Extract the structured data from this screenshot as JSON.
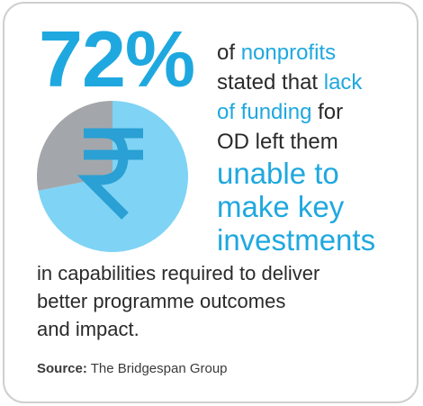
{
  "stat": {
    "percent_text": "72%"
  },
  "statement": {
    "lines": [
      {
        "parts": [
          {
            "text": "of ",
            "hl": false
          },
          {
            "text": "nonprofits",
            "hl": true
          }
        ],
        "size": "normal"
      },
      {
        "parts": [
          {
            "text": "stated that ",
            "hl": false
          },
          {
            "text": "lack",
            "hl": true
          }
        ],
        "size": "normal"
      },
      {
        "parts": [
          {
            "text": "of funding",
            "hl": true
          },
          {
            "text": " for",
            "hl": false
          }
        ],
        "size": "normal"
      },
      {
        "parts": [
          {
            "text": "OD left them",
            "hl": false
          }
        ],
        "size": "normal"
      },
      {
        "parts": [
          {
            "text": "unable to",
            "hl": true
          }
        ],
        "size": "xl"
      },
      {
        "parts": [
          {
            "text": "make key",
            "hl": true
          }
        ],
        "size": "xl"
      },
      {
        "parts": [
          {
            "text": "investments",
            "hl": true
          }
        ],
        "size": "xl"
      }
    ],
    "body_lines": [
      "in capabilities required to deliver",
      "better programme outcomes",
      "and impact."
    ]
  },
  "source": {
    "label": "Source:",
    "text": " The Bridgespan Group"
  },
  "chart_data": {
    "type": "pie",
    "title": "",
    "slices": [
      {
        "value": 72,
        "color": "#7fd3f5"
      },
      {
        "value": 28,
        "color": "#a3a7ab"
      }
    ],
    "center_icon": "rupee-icon",
    "icon_color": "#2aa0d4"
  }
}
